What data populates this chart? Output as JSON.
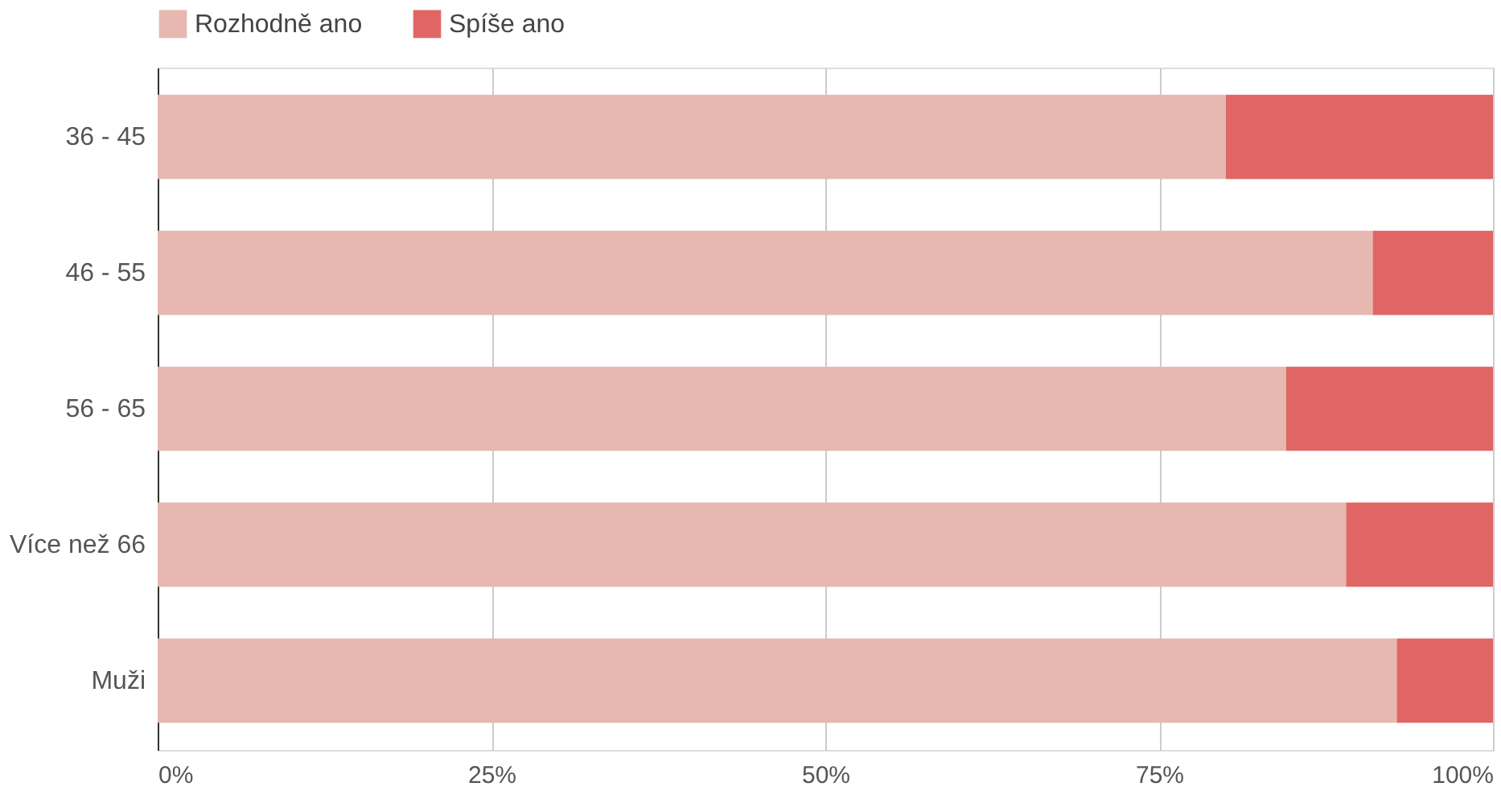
{
  "chart_data": {
    "type": "bar",
    "orientation": "horizontal",
    "stacked": true,
    "categories": [
      "36 - 45",
      "46 - 55",
      "56 - 65",
      "Více než 66",
      "Muži"
    ],
    "series": [
      {
        "name": "Rozhodně ano",
        "color": "#e6b8af",
        "values": [
          80.0,
          91.0,
          84.5,
          89.0,
          92.8
        ]
      },
      {
        "name": "Spíše ano",
        "color": "#e06666",
        "values": [
          20.0,
          9.0,
          15.5,
          11.0,
          7.2
        ]
      }
    ],
    "xlim": [
      0,
      100
    ],
    "xticks": [
      {
        "value": 0,
        "label": "0%"
      },
      {
        "value": 25,
        "label": "25%"
      },
      {
        "value": 50,
        "label": "50%"
      },
      {
        "value": 75,
        "label": "75%"
      },
      {
        "value": 100,
        "label": "100%"
      }
    ],
    "grid": "x",
    "legend": "top"
  }
}
